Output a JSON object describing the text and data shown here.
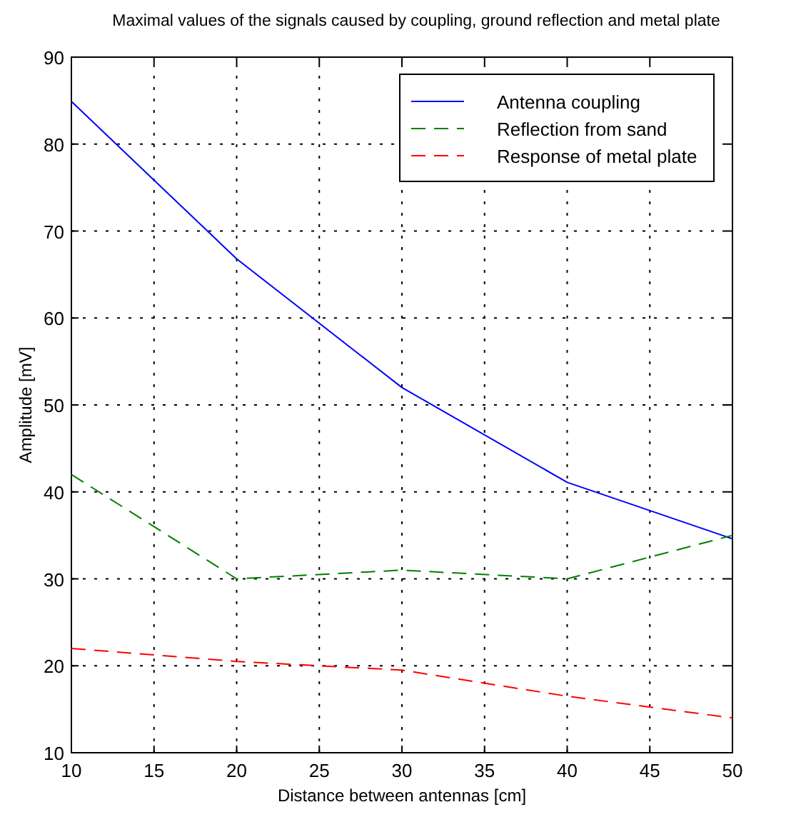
{
  "chart_data": {
    "type": "line",
    "title": "Maximal values of the signals caused by coupling, ground reflection and metal plate",
    "xlabel": "Distance between antennas [cm]",
    "ylabel": "Amplitude [mV]",
    "x": [
      10,
      20,
      30,
      40,
      50
    ],
    "series": [
      {
        "name": "Antenna coupling",
        "color": "#0000ff",
        "values": [
          84.9,
          66.8,
          52,
          41.1,
          34.6
        ],
        "line_style": "solid"
      },
      {
        "name": "Reflection from sand",
        "color": "#008000",
        "values": [
          42,
          30,
          31,
          30,
          35
        ],
        "line_style": "dashed"
      },
      {
        "name": "Response of metal plate",
        "color": "#ff0000",
        "values": [
          22,
          20.5,
          19.5,
          16.5,
          14
        ],
        "line_style": "dashed"
      }
    ],
    "xlim": [
      10,
      50
    ],
    "xticks": [
      10,
      15,
      20,
      25,
      30,
      35,
      40,
      45,
      50
    ],
    "ylim": [
      10,
      90
    ],
    "yticks": [
      10,
      20,
      30,
      40,
      50,
      60,
      70,
      80,
      90
    ],
    "grid": true,
    "legend": "top right",
    "marker": "none"
  }
}
